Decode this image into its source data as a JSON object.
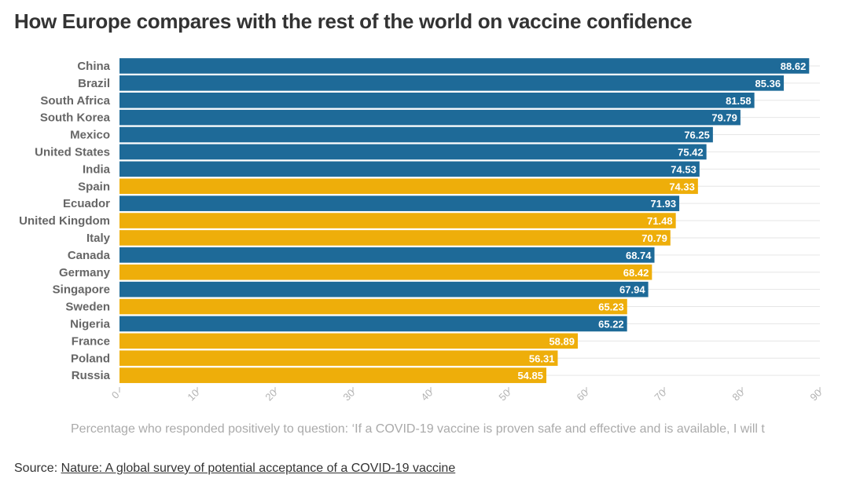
{
  "title": "How Europe compares with the rest of the world on vaccine confidence",
  "source_label": "Source:",
  "source_link": "Nature: A global survey of potential acceptance of a COVID-19 vaccine",
  "colors": {
    "europe": "#eeae0a",
    "rest_of_world": "#1e6a98",
    "grid": "#e6e6e6",
    "label": "#666666",
    "tick": "#b3b3b3"
  },
  "chart_data": {
    "type": "bar",
    "orientation": "horizontal",
    "title": "How Europe compares with the rest of the world on vaccine confidence",
    "xlabel": "Percentage who responded positively to question: ‘If a COVID-19 vaccine is proven safe and effective and is available, I will t",
    "ylabel": "",
    "xlim": [
      0,
      90
    ],
    "xticks": [
      0,
      10,
      20,
      30,
      40,
      50,
      60,
      70,
      80,
      90
    ],
    "grid": true,
    "categories": [
      "China",
      "Brazil",
      "South Africa",
      "South Korea",
      "Mexico",
      "United States",
      "India",
      "Spain",
      "Ecuador",
      "United Kingdom",
      "Italy",
      "Canada",
      "Germany",
      "Singapore",
      "Sweden",
      "Nigeria",
      "France",
      "Poland",
      "Russia"
    ],
    "values": [
      88.62,
      85.36,
      81.58,
      79.79,
      76.25,
      75.42,
      74.53,
      74.33,
      71.93,
      71.48,
      70.79,
      68.74,
      68.42,
      67.94,
      65.23,
      65.22,
      58.89,
      56.31,
      54.85
    ],
    "group": [
      "rest_of_world",
      "rest_of_world",
      "rest_of_world",
      "rest_of_world",
      "rest_of_world",
      "rest_of_world",
      "rest_of_world",
      "europe",
      "rest_of_world",
      "europe",
      "europe",
      "rest_of_world",
      "europe",
      "rest_of_world",
      "europe",
      "rest_of_world",
      "europe",
      "europe",
      "europe"
    ],
    "data_labels": [
      "88.62",
      "85.36",
      "81.58",
      "79.79",
      "76.25",
      "75.42",
      "74.53",
      "74.33",
      "71.93",
      "71.48",
      "70.79",
      "68.74",
      "68.42",
      "67.94",
      "65.23",
      "65.22",
      "58.89",
      "56.31",
      "54.85"
    ]
  }
}
